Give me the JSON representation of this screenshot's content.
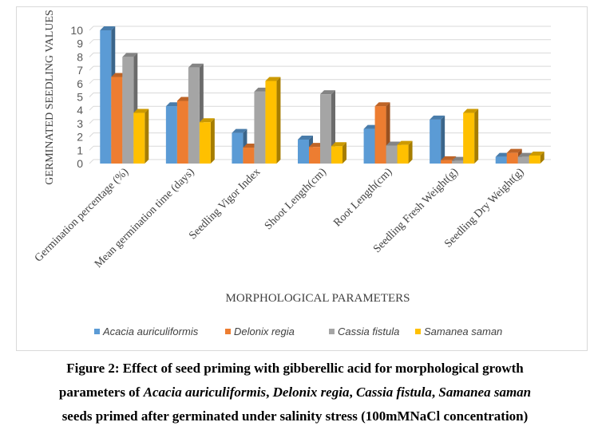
{
  "chart_data": {
    "type": "bar",
    "title": "",
    "xlabel": "MORPHOLOGICAL PARAMETERS",
    "ylabel": "GERMINATED SEEDLING VALUES",
    "ylim": [
      0,
      10
    ],
    "yticks": [
      "0",
      "1",
      "2",
      "3",
      "4",
      "5",
      "6",
      "7",
      "8",
      "9",
      "10"
    ],
    "categories": [
      "Germination percentage (%)",
      "Mean germination time (days)",
      "Seedling Vigor Index",
      "Shoot Length(cm)",
      "Root Length(cm)",
      "Seedling Fresh Weight(g)",
      "Seedling Dry Weight(g)"
    ],
    "series": [
      {
        "name": "Acacia auriculiformis",
        "color": "#5b9bd5",
        "values": [
          10,
          4.3,
          2.3,
          1.8,
          2.6,
          3.3,
          0.5
        ]
      },
      {
        "name": "Delonix regia",
        "color": "#ed7d31",
        "values": [
          6.5,
          4.7,
          1.2,
          1.25,
          4.3,
          0.25,
          0.8
        ]
      },
      {
        "name": "Cassia fistula",
        "color": "#a5a5a5",
        "values": [
          8,
          7.2,
          5.4,
          5.2,
          1.35,
          0.2,
          0.5
        ]
      },
      {
        "name": "Samanea saman",
        "color": "#ffc000",
        "values": [
          3.8,
          3.1,
          6.2,
          1.3,
          1.4,
          3.8,
          0.6
        ]
      }
    ],
    "grid": true,
    "legend_position": "bottom"
  },
  "caption": {
    "line1": "Figure 2: Effect of seed priming with gibberellic acid for morphological growth",
    "line2_prefix": "parameters of ",
    "species": [
      "Acacia auriculiformis",
      "Delonix regia",
      "Cassia fistula",
      "Samanea saman"
    ],
    "line3": "seeds primed after germinated under salinity stress (100mMNaCl concentration)"
  }
}
